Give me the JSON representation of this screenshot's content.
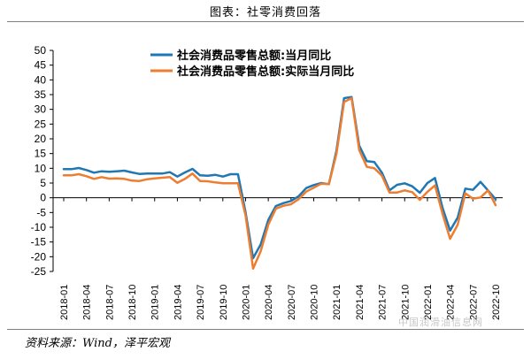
{
  "title": "图表：社零消费回落",
  "source": "资料来源：Wind，泽平宏观",
  "watermark": "中国润滑油信息网",
  "chart_data": {
    "type": "line",
    "xlabel": "",
    "ylabel": "",
    "ylim": [
      -25,
      50
    ],
    "yticks": [
      -25,
      -20,
      -15,
      -10,
      -5,
      0,
      5,
      10,
      15,
      20,
      25,
      30,
      35,
      40,
      45,
      50
    ],
    "xtick_labels": [
      "2018-01",
      "2018-04",
      "2018-07",
      "2018-10",
      "2019-01",
      "2019-04",
      "2019-07",
      "2019-10",
      "2020-01",
      "2020-04",
      "2020-07",
      "2020-10",
      "2021-01",
      "2021-04",
      "2021-07",
      "2021-10",
      "2022-01",
      "2022-04",
      "2022-07",
      "2022-10"
    ],
    "x": [
      "2018-01",
      "2018-02",
      "2018-03",
      "2018-04",
      "2018-05",
      "2018-06",
      "2018-07",
      "2018-08",
      "2018-09",
      "2018-10",
      "2018-11",
      "2018-12",
      "2019-01",
      "2019-02",
      "2019-03",
      "2019-04",
      "2019-05",
      "2019-06",
      "2019-07",
      "2019-08",
      "2019-09",
      "2019-10",
      "2019-11",
      "2019-12",
      "2020-01",
      "2020-02",
      "2020-03",
      "2020-04",
      "2020-05",
      "2020-06",
      "2020-07",
      "2020-08",
      "2020-09",
      "2020-10",
      "2020-11",
      "2020-12",
      "2021-01",
      "2021-02",
      "2021-03",
      "2021-04",
      "2021-05",
      "2021-06",
      "2021-07",
      "2021-08",
      "2021-09",
      "2021-10",
      "2021-11",
      "2021-12",
      "2022-01",
      "2022-02",
      "2022-03",
      "2022-04",
      "2022-05",
      "2022-06",
      "2022-07",
      "2022-08",
      "2022-09",
      "2022-10"
    ],
    "series": [
      {
        "name": "社会消费品零售总额:当月同比",
        "color": "#1f77b4",
        "values": [
          9.7,
          9.7,
          10.1,
          9.4,
          8.5,
          9.0,
          8.8,
          9.0,
          9.2,
          8.6,
          8.1,
          8.2,
          8.2,
          8.2,
          8.7,
          7.2,
          8.6,
          9.8,
          7.6,
          7.5,
          7.8,
          7.2,
          8.0,
          8.0,
          -5.0,
          -20.5,
          -15.8,
          -7.5,
          -2.8,
          -1.8,
          -1.1,
          0.5,
          3.3,
          4.3,
          5.0,
          4.6,
          16.0,
          33.8,
          34.2,
          17.7,
          12.4,
          12.1,
          8.5,
          2.5,
          4.4,
          4.9,
          3.9,
          1.7,
          5.0,
          6.7,
          -3.5,
          -11.1,
          -6.7,
          3.1,
          2.7,
          5.4,
          2.5,
          -0.5
        ]
      },
      {
        "name": "社会消费品零售总额:实际当月同比",
        "color": "#ed7d31",
        "values": [
          7.6,
          7.6,
          8.0,
          7.3,
          6.4,
          7.0,
          6.5,
          6.6,
          6.4,
          5.8,
          5.7,
          6.3,
          6.6,
          6.8,
          7.0,
          5.1,
          6.4,
          8.2,
          5.7,
          5.6,
          5.2,
          4.9,
          4.9,
          4.9,
          -6.0,
          -24.0,
          -18.1,
          -9.1,
          -3.7,
          -2.7,
          -2.2,
          -0.5,
          2.1,
          3.4,
          4.8,
          4.6,
          15.0,
          32.5,
          33.8,
          16.2,
          10.5,
          10.0,
          7.5,
          1.8,
          1.8,
          2.5,
          1.9,
          -0.7,
          2.0,
          4.2,
          -5.5,
          -13.9,
          -9.1,
          1.5,
          -0.3,
          0.1,
          2.5,
          -2.5
        ]
      }
    ],
    "legend": "top-left",
    "grid": false
  }
}
